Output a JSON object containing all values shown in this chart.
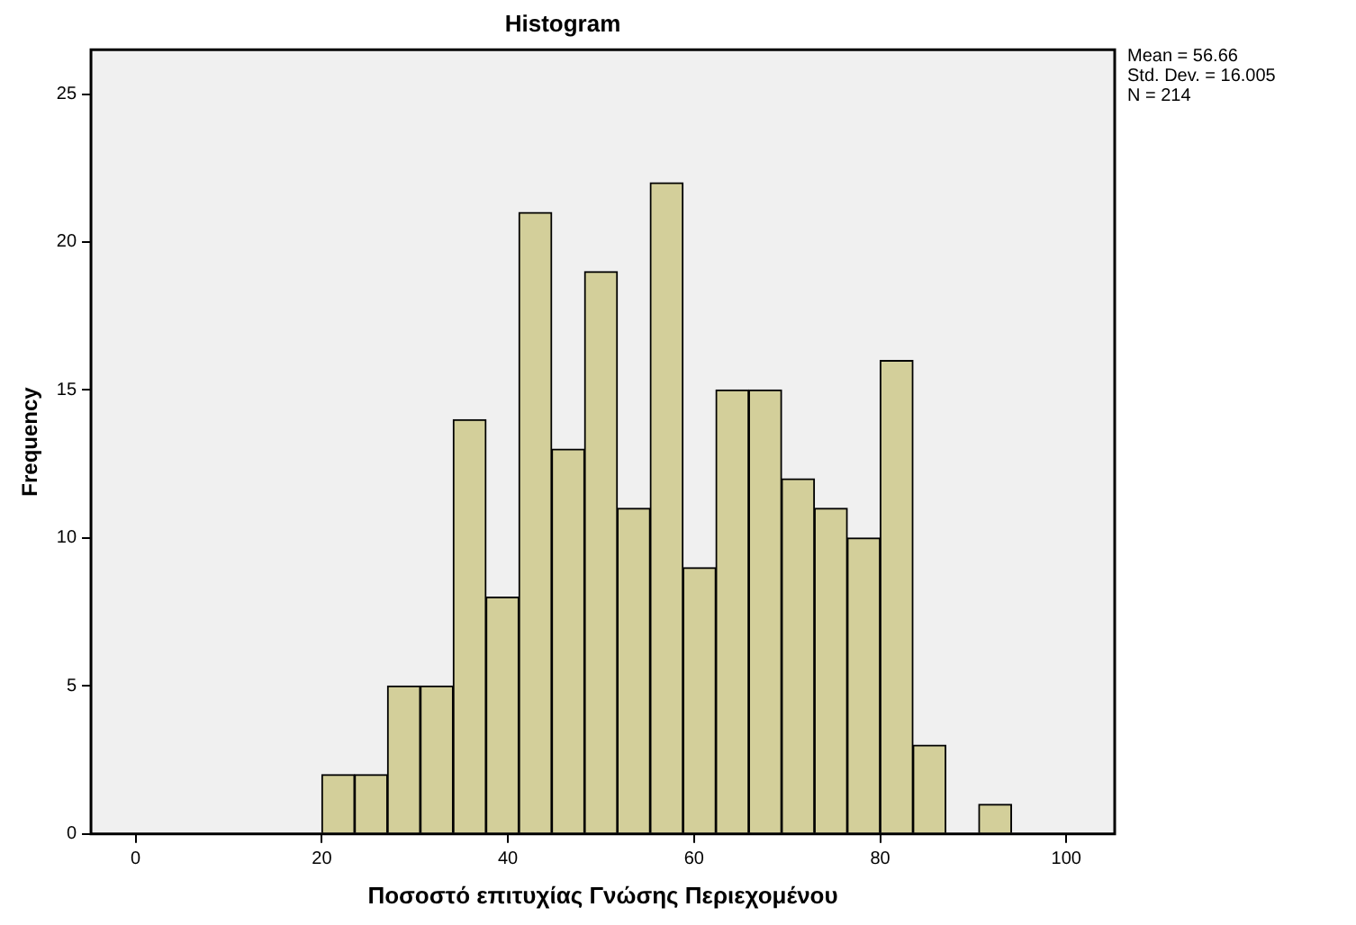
{
  "chart_data": {
    "type": "histogram",
    "title": "Histogram",
    "xlabel": "Ποσοστό επιτυχίας Γνώσης Περιεχομένου",
    "ylabel": "Frequency",
    "bins": [
      20,
      23.53,
      27.06,
      30.59,
      34.12,
      37.65,
      41.18,
      44.71,
      48.24,
      51.76,
      55.29,
      58.82,
      62.35,
      65.88,
      69.41,
      72.94,
      76.47,
      80,
      83.53,
      87.06,
      90.59,
      94.12
    ],
    "values": [
      2,
      2,
      5,
      5,
      14,
      8,
      21,
      13,
      19,
      11,
      22,
      9,
      15,
      15,
      12,
      11,
      10,
      16,
      3,
      0,
      1
    ],
    "color": "#d3cf9a",
    "xlim": [
      -4.8,
      105.2
    ],
    "xticks": [
      0,
      20,
      40,
      60,
      80,
      100
    ],
    "ylim": [
      0,
      26.5
    ],
    "yticks": [
      0,
      5,
      10,
      15,
      20,
      25
    ],
    "legend": false,
    "annotations": [
      "Mean = 56.66",
      "Std. Dev. = 16.005",
      "N = 214"
    ]
  }
}
